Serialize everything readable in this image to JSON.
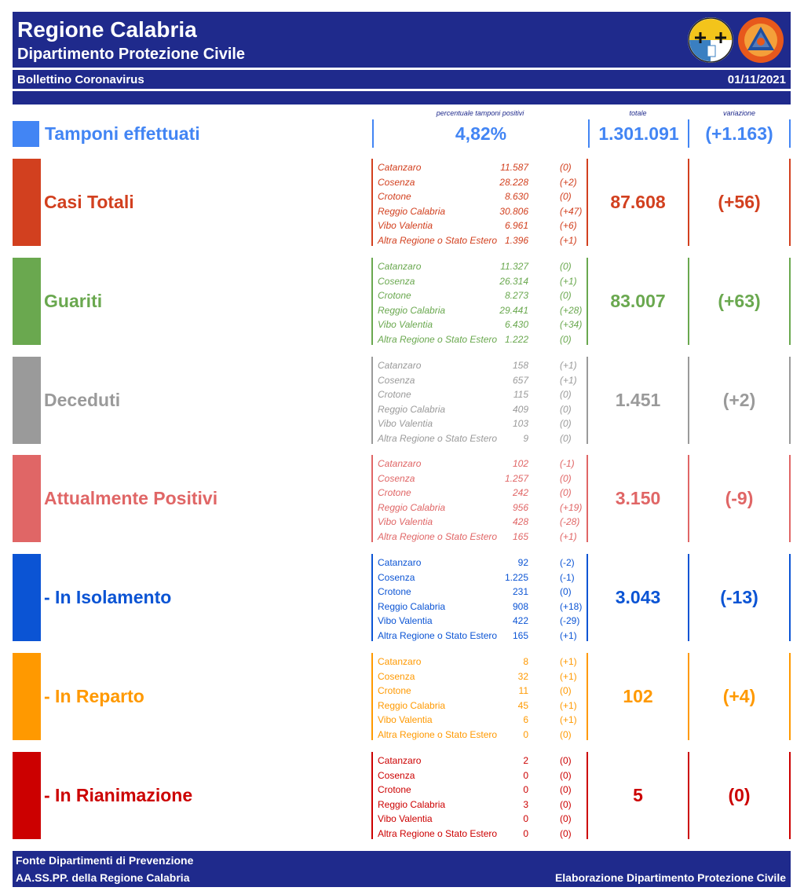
{
  "header": {
    "title": "Regione Calabria",
    "subtitle": "Dipartimento Protezione Civile",
    "bulletin": "Bollettino Coronavirus",
    "date": "01/11/2021"
  },
  "columns": {
    "pct_label": "percentuale tamponi positivi",
    "tot_label": "totale",
    "var_label": "variazione"
  },
  "tamponi": {
    "label": "Tamponi effettuati",
    "pct": "4,82%",
    "total": "1.301.091",
    "variation": "(+1.163)",
    "color": "#4285f4"
  },
  "sections": [
    {
      "label": "Casi Totali",
      "color": "#d2401f",
      "total": "87.608",
      "variation": "(+56)",
      "rows": [
        {
          "name": "Catanzaro",
          "value": "11.587",
          "var": "(0)"
        },
        {
          "name": "Cosenza",
          "value": "28.228",
          "var": "(+2)"
        },
        {
          "name": "Crotone",
          "value": "8.630",
          "var": "(0)"
        },
        {
          "name": "Reggio Calabria",
          "value": "30.806",
          "var": "(+47)"
        },
        {
          "name": "Vibo Valentia",
          "value": "6.961",
          "var": "(+6)"
        },
        {
          "name": "Altra Regione o Stato Estero",
          "value": "1.396",
          "var": "(+1)"
        }
      ]
    },
    {
      "label": "Guariti",
      "color": "#6aa84f",
      "total": "83.007",
      "variation": "(+63)",
      "rows": [
        {
          "name": "Catanzaro",
          "value": "11.327",
          "var": "(0)"
        },
        {
          "name": "Cosenza",
          "value": "26.314",
          "var": "(+1)"
        },
        {
          "name": "Crotone",
          "value": "8.273",
          "var": "(0)"
        },
        {
          "name": "Reggio Calabria",
          "value": "29.441",
          "var": "(+28)"
        },
        {
          "name": "Vibo Valentia",
          "value": "6.430",
          "var": "(+34)"
        },
        {
          "name": "Altra Regione o Stato Estero",
          "value": "1.222",
          "var": "(0)"
        }
      ]
    },
    {
      "label": "Deceduti",
      "color": "#9a9a9a",
      "total": "1.451",
      "variation": "(+2)",
      "rows": [
        {
          "name": "Catanzaro",
          "value": "158",
          "var": "(+1)"
        },
        {
          "name": "Cosenza",
          "value": "657",
          "var": "(+1)"
        },
        {
          "name": "Crotone",
          "value": "115",
          "var": "(0)"
        },
        {
          "name": "Reggio Calabria",
          "value": "409",
          "var": "(0)"
        },
        {
          "name": "Vibo Valentia",
          "value": "103",
          "var": "(0)"
        },
        {
          "name": "Altra Regione o Stato Estero",
          "value": "9",
          "var": "(0)"
        }
      ]
    },
    {
      "label": "Attualmente Positivi",
      "color": "#e06666",
      "total": "3.150",
      "variation": "(-9)",
      "rows": [
        {
          "name": "Catanzaro",
          "value": "102",
          "var": "(-1)"
        },
        {
          "name": "Cosenza",
          "value": "1.257",
          "var": "(0)"
        },
        {
          "name": "Crotone",
          "value": "242",
          "var": "(0)"
        },
        {
          "name": "Reggio Calabria",
          "value": "956",
          "var": "(+19)"
        },
        {
          "name": "Vibo Valentia",
          "value": "428",
          "var": "(-28)"
        },
        {
          "name": "Altra Regione o Stato Estero",
          "value": "165",
          "var": "(+1)"
        }
      ]
    },
    {
      "label": "- In Isolamento",
      "color": "#0b54d4",
      "total": "3.043",
      "variation": "(-13)",
      "rows": [
        {
          "name": "Catanzaro",
          "value": "92",
          "var": "(-2)"
        },
        {
          "name": "Cosenza",
          "value": "1.225",
          "var": "(-1)"
        },
        {
          "name": "Crotone",
          "value": "231",
          "var": "(0)"
        },
        {
          "name": "Reggio Calabria",
          "value": "908",
          "var": "(+18)"
        },
        {
          "name": "Vibo Valentia",
          "value": "422",
          "var": "(-29)"
        },
        {
          "name": "Altra Regione o Stato Estero",
          "value": "165",
          "var": "(+1)"
        }
      ]
    },
    {
      "label": "- In Reparto",
      "color": "#ff9900",
      "total": "102",
      "variation": "(+4)",
      "rows": [
        {
          "name": "Catanzaro",
          "value": "8",
          "var": "(+1)"
        },
        {
          "name": "Cosenza",
          "value": "32",
          "var": "(+1)"
        },
        {
          "name": "Crotone",
          "value": "11",
          "var": "(0)"
        },
        {
          "name": "Reggio Calabria",
          "value": "45",
          "var": "(+1)"
        },
        {
          "name": "Vibo Valentia",
          "value": "6",
          "var": "(+1)"
        },
        {
          "name": "Altra Regione o Stato Estero",
          "value": "0",
          "var": "(0)"
        }
      ]
    },
    {
      "label": "- In Rianimazione",
      "color": "#cc0000",
      "total": "5",
      "variation": "(0)",
      "rows": [
        {
          "name": "Catanzaro",
          "value": "2",
          "var": "(0)"
        },
        {
          "name": "Cosenza",
          "value": "0",
          "var": "(0)"
        },
        {
          "name": "Crotone",
          "value": "0",
          "var": "(0)"
        },
        {
          "name": "Reggio Calabria",
          "value": "3",
          "var": "(0)"
        },
        {
          "name": "Vibo Valentia",
          "value": "0",
          "var": "(0)"
        },
        {
          "name": "Altra Regione o Stato Estero",
          "value": "0",
          "var": "(0)"
        }
      ]
    }
  ],
  "footer": {
    "line1": "Fonte Dipartimenti di Prevenzione",
    "line2": "AA.SS.PP.  della Regione Calabria",
    "right": "Elaborazione Dipartimento Protezione Civile"
  },
  "logos": [
    {
      "name": "regione-calabria-emblem-icon"
    },
    {
      "name": "protezione-civile-logo-icon",
      "text_top": "PROTEZIONE CIVILE",
      "text_bottom": "Regione Calabria"
    }
  ]
}
